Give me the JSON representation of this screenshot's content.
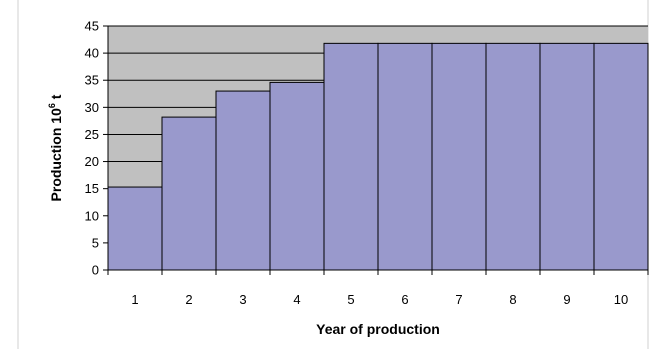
{
  "chart_data": {
    "type": "bar",
    "categories": [
      "1",
      "2",
      "3",
      "4",
      "5",
      "6",
      "7",
      "8",
      "9",
      "10"
    ],
    "values": [
      15.3,
      28.2,
      33.0,
      34.6,
      41.8,
      41.8,
      41.8,
      41.8,
      41.8,
      41.8
    ],
    "title": "",
    "xlabel": "Year of production",
    "ylabel": "Production 10",
    "ylabel_superscript": "6",
    "ylabel_suffix": " t",
    "ylim": [
      0,
      45
    ],
    "yticks": [
      "0",
      "5",
      "10",
      "15",
      "20",
      "25",
      "30",
      "35",
      "40",
      "45"
    ],
    "grid": true,
    "legend": "none",
    "colors": {
      "plot_background": "#c0c0c0",
      "bar_fill": "#9999cc",
      "bar_stroke": "#000000",
      "gridline": "#000000"
    }
  }
}
